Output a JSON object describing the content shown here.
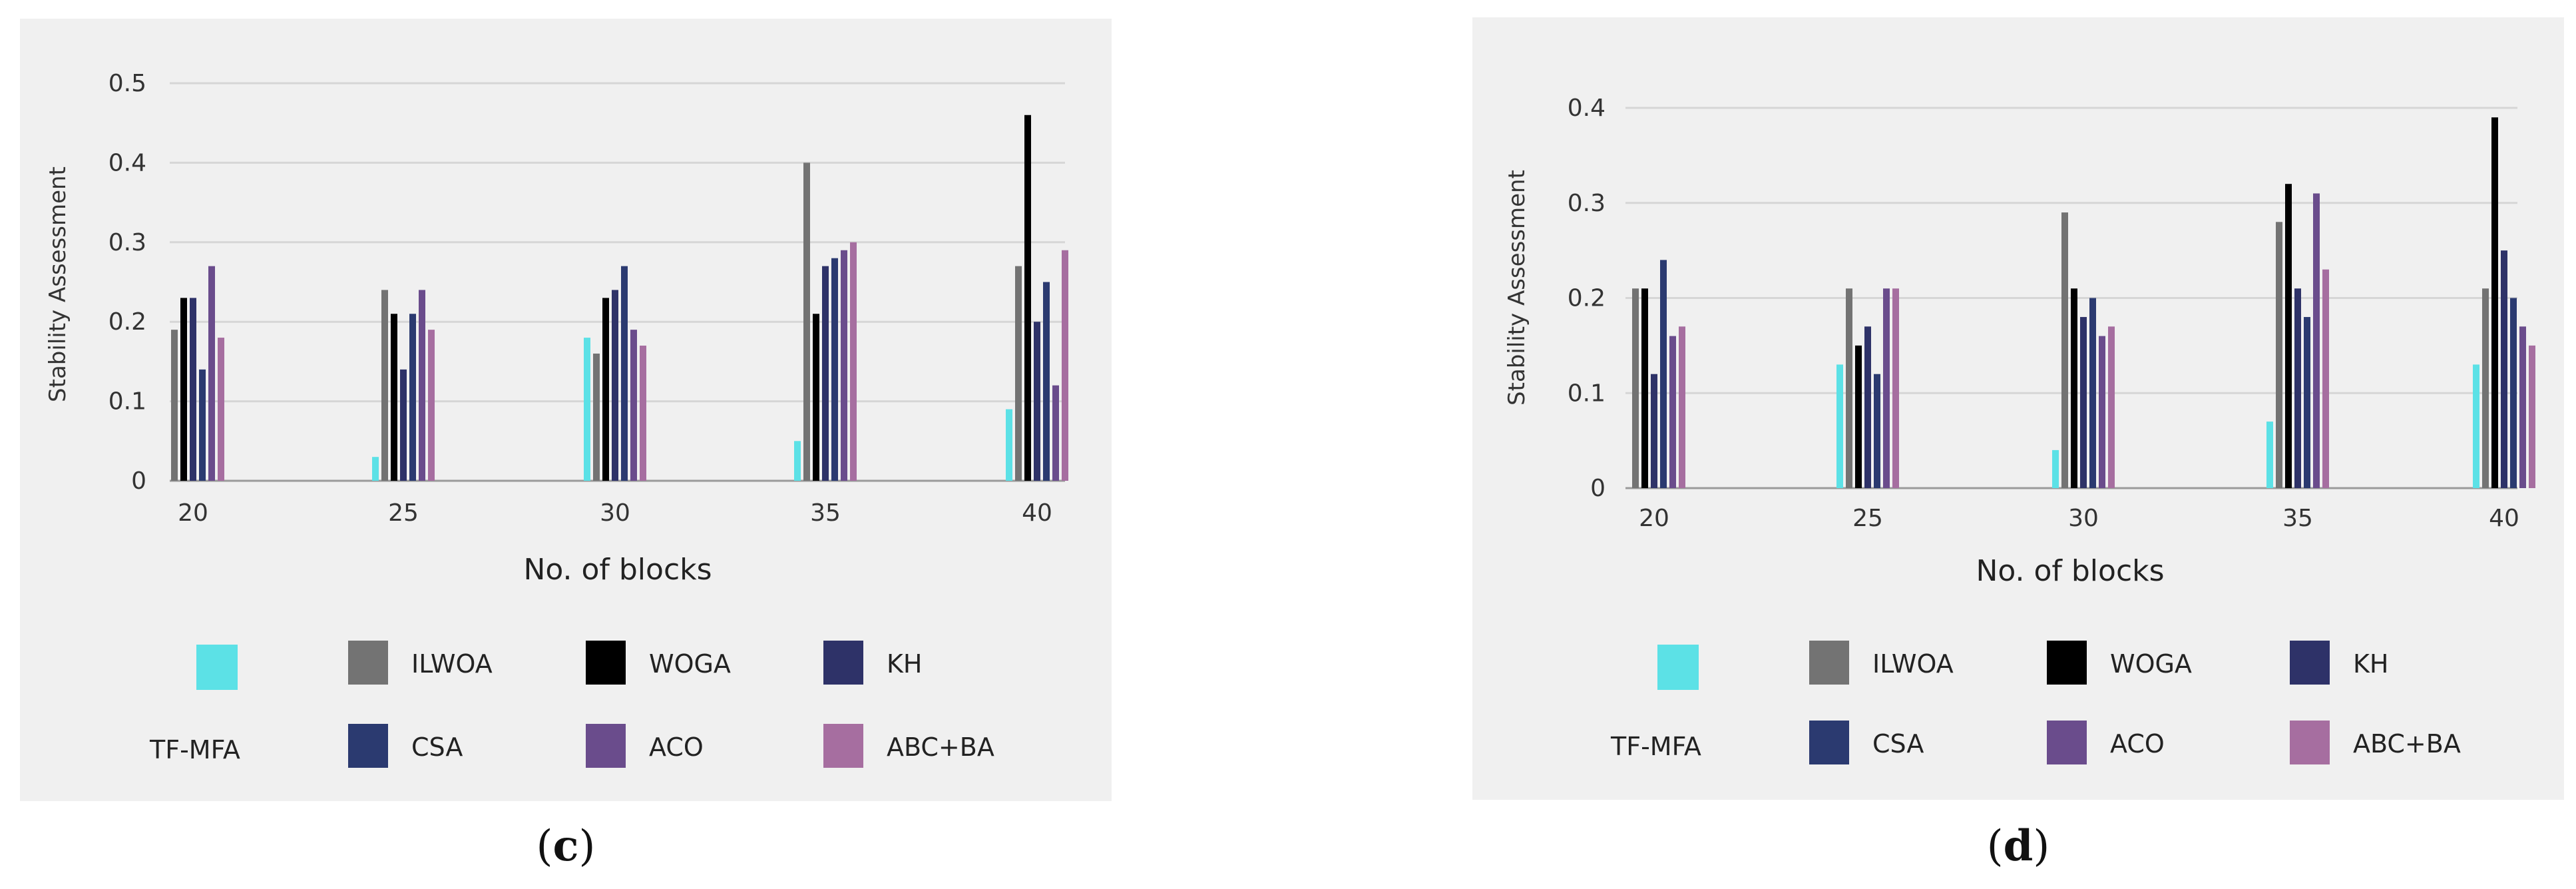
{
  "legend": [
    {
      "label": "TF-MFA",
      "color": "#5ce1e6"
    },
    {
      "label": "ILWOA",
      "color": "#737373"
    },
    {
      "label": "WOGA",
      "color": "#000000"
    },
    {
      "label": "KH",
      "color": "#2e3268"
    },
    {
      "label": "CSA",
      "color": "#2b3a70"
    },
    {
      "label": "ACO",
      "color": "#6a4c8c"
    },
    {
      "label": "ABC+BA",
      "color": "#a66ea0"
    }
  ],
  "chart_data": [
    {
      "type": "bar",
      "caption_open": "(",
      "caption_letter": "c",
      "caption_close": ")",
      "xlabel": "No. of blocks",
      "ylabel": "Stability Assessment",
      "ylim": [
        0,
        0.5
      ],
      "yticks": [
        0,
        0.1,
        0.2,
        0.3,
        0.4,
        0.5
      ],
      "ytick_labels": [
        "0",
        "0.1",
        "0.2",
        "0.3",
        "0.4",
        "0.5"
      ],
      "categories": [
        "20",
        "25",
        "30",
        "35",
        "40"
      ],
      "series": [
        {
          "name": "TF-MFA",
          "values": [
            0,
            0.03,
            0.18,
            0.05,
            0.09
          ]
        },
        {
          "name": "ILWOA",
          "values": [
            0.19,
            0.24,
            0.16,
            0.4,
            0.27
          ]
        },
        {
          "name": "WOGA",
          "values": [
            0.23,
            0.21,
            0.23,
            0.21,
            0.46
          ]
        },
        {
          "name": "KH",
          "values": [
            0.23,
            0.14,
            0.24,
            0.27,
            0.2
          ]
        },
        {
          "name": "CSA",
          "values": [
            0.14,
            0.21,
            0.27,
            0.28,
            0.25
          ]
        },
        {
          "name": "ACO",
          "values": [
            0.27,
            0.24,
            0.19,
            0.29,
            0.12
          ]
        },
        {
          "name": "ABC+BA",
          "values": [
            0.18,
            0.19,
            0.17,
            0.3,
            0.29
          ]
        }
      ]
    },
    {
      "type": "bar",
      "caption_open": "(",
      "caption_letter": "d",
      "caption_close": ")",
      "xlabel": "No. of blocks",
      "ylabel": "Stability Assessment",
      "ylim": [
        0,
        0.4
      ],
      "yticks": [
        0,
        0.1,
        0.2,
        0.3,
        0.4
      ],
      "ytick_labels": [
        "0",
        "0.1",
        "0.2",
        "0.3",
        "0.4"
      ],
      "categories": [
        "20",
        "25",
        "30",
        "35",
        "40"
      ],
      "series": [
        {
          "name": "TF-MFA",
          "values": [
            0,
            0.13,
            0.04,
            0.07,
            0.13
          ]
        },
        {
          "name": "ILWOA",
          "values": [
            0.21,
            0.21,
            0.29,
            0.28,
            0.21
          ]
        },
        {
          "name": "WOGA",
          "values": [
            0.21,
            0.15,
            0.21,
            0.32,
            0.39
          ]
        },
        {
          "name": "KH",
          "values": [
            0.12,
            0.17,
            0.18,
            0.21,
            0.25
          ]
        },
        {
          "name": "CSA",
          "values": [
            0.24,
            0.12,
            0.2,
            0.18,
            0.2
          ]
        },
        {
          "name": "ACO",
          "values": [
            0.16,
            0.21,
            0.16,
            0.31,
            0.17
          ]
        },
        {
          "name": "ABC+BA",
          "values": [
            0.17,
            0.21,
            0.17,
            0.23,
            0.15
          ]
        }
      ]
    }
  ]
}
